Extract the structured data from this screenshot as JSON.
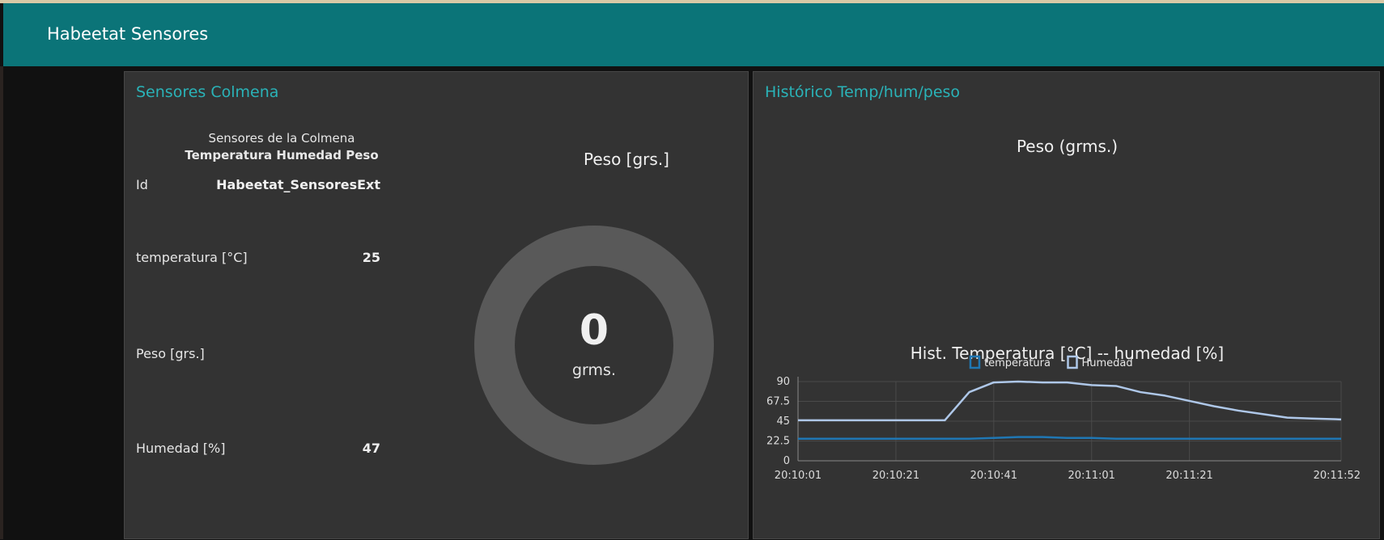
{
  "header": {
    "title": "Habeetat Sensores"
  },
  "left_panel": {
    "title": "Sensores Colmena",
    "table": {
      "caption_line1": "Sensores de la Colmena",
      "caption_line2": "Temperatura Humedad Peso",
      "rows": [
        {
          "label": "Id",
          "value": "Habeetat_SensoresExt"
        },
        {
          "label": "temperatura [°C]",
          "value": "25"
        },
        {
          "label": "Peso [grs.]",
          "value": ""
        },
        {
          "label": "Humedad [%]",
          "value": "47"
        }
      ]
    },
    "gauge": {
      "title": "Peso [grs.]",
      "value": "0",
      "unit": "grms.",
      "fraction": 0,
      "colors": {
        "track": "#595959",
        "fill": "#2ab3b8"
      }
    }
  },
  "right_panel": {
    "title": "Histórico Temp/hum/peso",
    "peso_chart_title": "Peso (grms.)",
    "chart_title": "Hist. Temperatura [°C] -- humedad [%]"
  },
  "chart_data": {
    "type": "line",
    "title": "Hist. Temperatura [°C] -- humedad [%]",
    "xlabel": "",
    "ylabel": "",
    "ylim": [
      0,
      90
    ],
    "yticks": [
      "0",
      "22.5",
      "45",
      "67.5",
      "90"
    ],
    "xticks": [
      "20:10:01",
      "20:10:21",
      "20:10:41",
      "20:11:01",
      "20:11:21",
      "20:11:52"
    ],
    "x": [
      "20:10:01",
      "20:10:10",
      "20:10:21",
      "20:10:31",
      "20:10:36",
      "20:10:41",
      "20:10:46",
      "20:10:51",
      "20:10:56",
      "20:11:01",
      "20:11:06",
      "20:11:11",
      "20:11:16",
      "20:11:21",
      "20:11:26",
      "20:11:31",
      "20:11:36",
      "20:11:41",
      "20:11:46",
      "20:11:52"
    ],
    "series": [
      {
        "name": "temperatura",
        "color": "#1f77b4",
        "values": [
          25,
          25,
          25,
          25,
          25,
          26,
          27,
          27,
          26,
          26,
          25,
          25,
          25,
          25,
          25,
          25,
          25,
          25,
          25,
          25
        ]
      },
      {
        "name": "Humedad",
        "color": "#aec7e8",
        "values": [
          46,
          46,
          46,
          46,
          78,
          89,
          90,
          89,
          89,
          86,
          85,
          78,
          74,
          68,
          62,
          57,
          53,
          49,
          48,
          47
        ]
      }
    ],
    "grid": true,
    "legend": "top-center"
  }
}
